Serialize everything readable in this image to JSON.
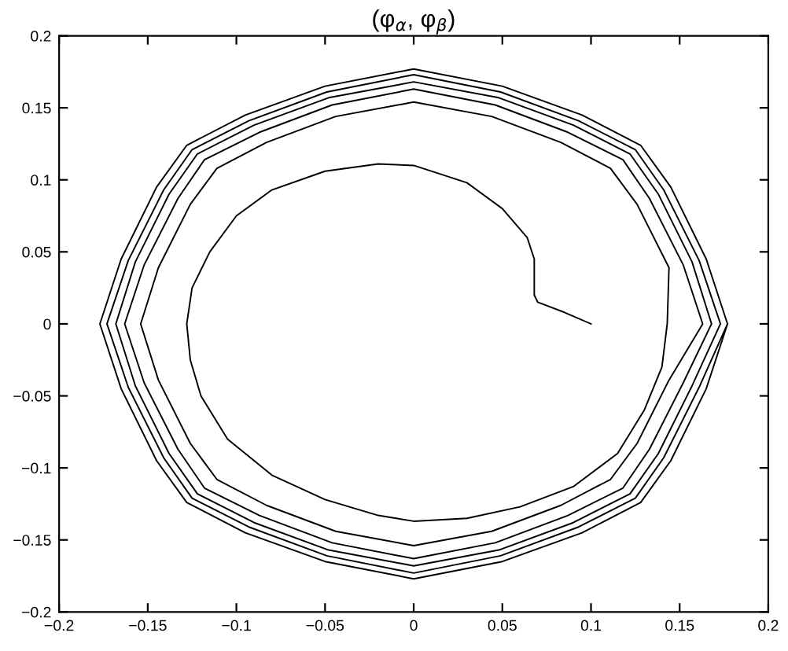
{
  "chart_data": {
    "type": "line",
    "title": "(φ$_{α}$, φ$_{β}$)",
    "xlim": [
      -0.2,
      0.2
    ],
    "ylim": [
      -0.2,
      0.2
    ],
    "xticks": [
      {
        "value": -0.2,
        "label": "−0.2"
      },
      {
        "value": -0.15,
        "label": "−0.15"
      },
      {
        "value": -0.1,
        "label": "−0.1"
      },
      {
        "value": -0.05,
        "label": "−0.05"
      },
      0,
      0.05,
      0.1,
      0.15,
      0.2
    ],
    "yticks": [
      {
        "value": -0.2,
        "label": "−0.2"
      },
      {
        "value": -0.15,
        "label": "−0.15"
      },
      {
        "value": -0.1,
        "label": "−0.1"
      },
      {
        "value": -0.05,
        "label": "−0.05"
      },
      0,
      0.05,
      0.1,
      0.15,
      0.2
    ],
    "grid": false,
    "legend": false,
    "marker": "none",
    "line_style": "solid",
    "series": [
      {
        "color": "#000000",
        "x": [
          0.1,
          0.085,
          0.07,
          0.068,
          0.068,
          0.064,
          0.05,
          0.03,
          0,
          -0.02,
          -0.05,
          -0.08,
          -0.1,
          -0.115,
          -0.125,
          -0.128,
          -0.126,
          -0.12,
          -0.105,
          -0.08,
          -0.05,
          -0.02,
          0,
          0.03,
          0.06,
          0.09,
          0.115,
          0.13,
          0.14,
          0.143,
          0.144,
          0.126,
          0.111,
          0.083,
          0.044,
          0,
          -0.044,
          -0.083,
          -0.111,
          -0.126,
          -0.144,
          -0.154,
          -0.144,
          -0.126,
          -0.111,
          -0.083,
          -0.044,
          0,
          0.044,
          0.083,
          0.111,
          0.126,
          0.144,
          0.163,
          0.152,
          0.133,
          0.118,
          0.087,
          0.046,
          0,
          -0.046,
          -0.087,
          -0.118,
          -0.133,
          -0.152,
          -0.163,
          -0.152,
          -0.133,
          -0.118,
          -0.087,
          -0.046,
          0,
          0.046,
          0.087,
          0.118,
          0.133,
          0.152,
          0.168,
          0.157,
          0.138,
          0.122,
          0.09,
          0.048,
          0,
          -0.048,
          -0.09,
          -0.122,
          -0.138,
          -0.157,
          -0.168,
          -0.157,
          -0.138,
          -0.122,
          -0.09,
          -0.048,
          0,
          0.048,
          0.09,
          0.122,
          0.138,
          0.157,
          0.173,
          0.161,
          0.141,
          0.125,
          0.093,
          0.049,
          0,
          -0.049,
          -0.093,
          -0.125,
          -0.141,
          -0.161,
          -0.173,
          -0.161,
          -0.141,
          -0.125,
          -0.093,
          -0.049,
          0,
          0.049,
          0.093,
          0.125,
          0.141,
          0.161,
          0.177,
          0.165,
          0.145,
          0.128,
          0.095,
          0.05,
          0,
          -0.05,
          -0.095,
          -0.128,
          -0.145,
          -0.165,
          -0.177,
          -0.165,
          -0.145,
          -0.128,
          -0.095,
          -0.05,
          0,
          0.05,
          0.095,
          0.128,
          0.145,
          0.165,
          0.177
        ],
        "values": [
          0,
          0.008,
          0.015,
          0.02,
          0.045,
          0.06,
          0.08,
          0.098,
          0.11,
          0.111,
          0.106,
          0.093,
          0.075,
          0.05,
          0.025,
          0,
          -0.025,
          -0.05,
          -0.08,
          -0.105,
          -0.122,
          -0.133,
          -0.137,
          -0.135,
          -0.127,
          -0.113,
          -0.09,
          -0.06,
          -0.03,
          0,
          0.039,
          0.083,
          0.108,
          0.126,
          0.144,
          0.154,
          0.144,
          0.126,
          0.108,
          0.083,
          0.039,
          0,
          -0.039,
          -0.083,
          -0.108,
          -0.126,
          -0.144,
          -0.154,
          -0.144,
          -0.126,
          -0.108,
          -0.083,
          -0.039,
          0,
          0.041,
          0.087,
          0.114,
          0.133,
          0.152,
          0.163,
          0.152,
          0.133,
          0.114,
          0.087,
          0.041,
          0,
          -0.041,
          -0.087,
          -0.114,
          -0.133,
          -0.152,
          -0.163,
          -0.152,
          -0.133,
          -0.114,
          -0.087,
          -0.041,
          0,
          0.043,
          0.09,
          0.118,
          0.138,
          0.157,
          0.168,
          0.157,
          0.138,
          0.118,
          0.09,
          0.043,
          0,
          -0.043,
          -0.09,
          -0.118,
          -0.138,
          -0.157,
          -0.168,
          -0.157,
          -0.138,
          -0.118,
          -0.09,
          -0.043,
          0,
          0.044,
          0.093,
          0.121,
          0.141,
          0.161,
          0.173,
          0.161,
          0.141,
          0.121,
          0.093,
          0.044,
          0,
          -0.044,
          -0.093,
          -0.121,
          -0.141,
          -0.161,
          -0.173,
          -0.161,
          -0.141,
          -0.121,
          -0.093,
          -0.044,
          0,
          0.045,
          0.095,
          0.124,
          0.145,
          0.165,
          0.177,
          0.165,
          0.145,
          0.124,
          0.095,
          0.045,
          0,
          -0.045,
          -0.095,
          -0.124,
          -0.145,
          -0.165,
          -0.177,
          -0.165,
          -0.145,
          -0.124,
          -0.095,
          -0.045,
          0
        ]
      }
    ]
  }
}
